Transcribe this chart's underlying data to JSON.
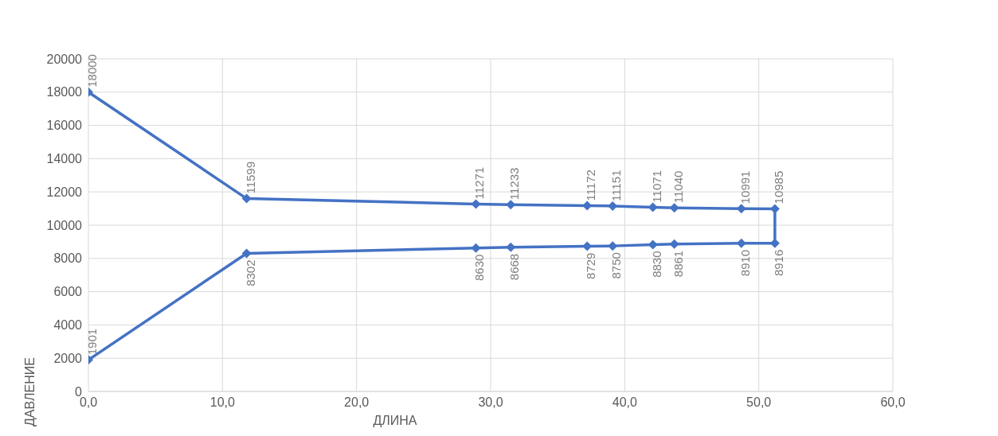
{
  "chart_data": {
    "type": "line",
    "xlabel": "ДЛИНА",
    "ylabel": "ДАВЛЕНИЕ",
    "x": [
      0,
      11.8,
      28.9,
      31.5,
      37.2,
      39.1,
      42.1,
      43.7,
      48.7,
      51.2,
      51.2,
      48.7,
      43.7,
      42.1,
      39.1,
      37.2,
      31.5,
      28.9,
      11.8,
      0
    ],
    "series": [
      {
        "color": "#4472c4",
        "values": [
          18000,
          11599,
          11271,
          11233,
          11172,
          11151,
          11071,
          11040,
          10991,
          10985,
          8916,
          8910,
          8861,
          8830,
          8750,
          8729,
          8668,
          8630,
          8302,
          1901
        ]
      }
    ],
    "xlim": [
      0,
      60
    ],
    "xticks": [
      {
        "value": 0,
        "label": "0,0"
      },
      {
        "value": 10,
        "label": "10,0"
      },
      {
        "value": 20,
        "label": "20,0"
      },
      {
        "value": 30,
        "label": "30,0"
      },
      {
        "value": 40,
        "label": "40,0"
      },
      {
        "value": 50,
        "label": "50,0"
      },
      {
        "value": 60,
        "label": "60,0"
      }
    ],
    "ylim": [
      0,
      20000
    ],
    "yticks": [
      0,
      2000,
      4000,
      6000,
      8000,
      10000,
      12000,
      14000,
      16000,
      18000,
      20000
    ],
    "grid": true,
    "marker": "diamond",
    "line_style": "solid",
    "data_labels": true
  }
}
